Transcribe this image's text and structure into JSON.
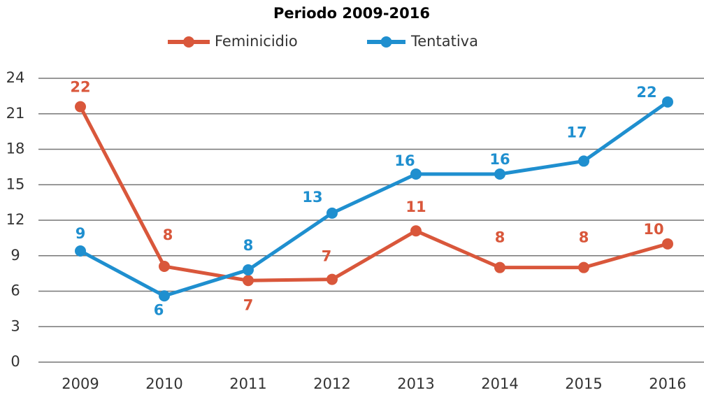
{
  "chart_data": {
    "type": "line",
    "title": "Periodo 2009-2016",
    "categories": [
      "2009",
      "2010",
      "2011",
      "2012",
      "2013",
      "2014",
      "2015",
      "2016"
    ],
    "series": [
      {
        "name": "Feminicidio",
        "color": "#d9573b",
        "values": [
          21.6,
          8.1,
          6.9,
          7.0,
          11.1,
          8.0,
          8.0,
          10.0
        ],
        "value_labels": [
          "22",
          "8",
          "7",
          "7",
          "11",
          "8",
          "8",
          "10"
        ]
      },
      {
        "name": "Tentativa",
        "color": "#1f8fcf",
        "values": [
          9.4,
          5.6,
          7.8,
          12.6,
          15.9,
          15.9,
          17.0,
          22.0
        ],
        "value_labels": [
          "9",
          "6",
          "8",
          "13",
          "16",
          "16",
          "17",
          "22"
        ]
      }
    ],
    "ylim": [
      0,
      24
    ],
    "yticks": [
      0,
      3,
      6,
      9,
      12,
      15,
      18,
      21,
      24
    ],
    "grid": true,
    "legend": "top"
  }
}
